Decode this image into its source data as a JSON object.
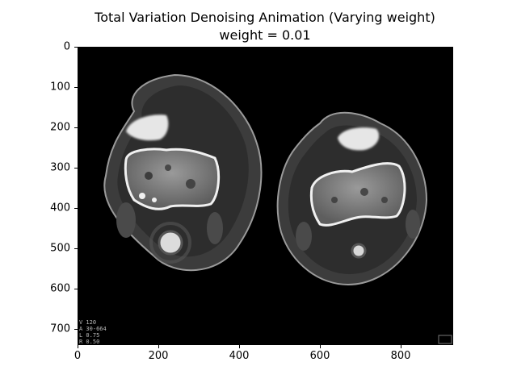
{
  "figure": {
    "title_line1": "Total Variation Denoising Animation (Varying weight)",
    "title_line2": "weight = 0.01"
  },
  "axes": {
    "x_ticks": [
      "0",
      "200",
      "400",
      "600",
      "800"
    ],
    "y_ticks": [
      "0",
      "100",
      "200",
      "300",
      "400",
      "500",
      "600",
      "700"
    ],
    "xlim": [
      0,
      930
    ],
    "ylim": [
      740,
      0
    ]
  },
  "image_overlay": {
    "lines": [
      "V 120",
      "A 30-664",
      "L 0.75",
      "R 0.50"
    ]
  },
  "colors": {
    "background": "#000000",
    "bone": "#f0f0f0",
    "soft_tissue": "#444444",
    "fat": "#2a2a2a"
  }
}
